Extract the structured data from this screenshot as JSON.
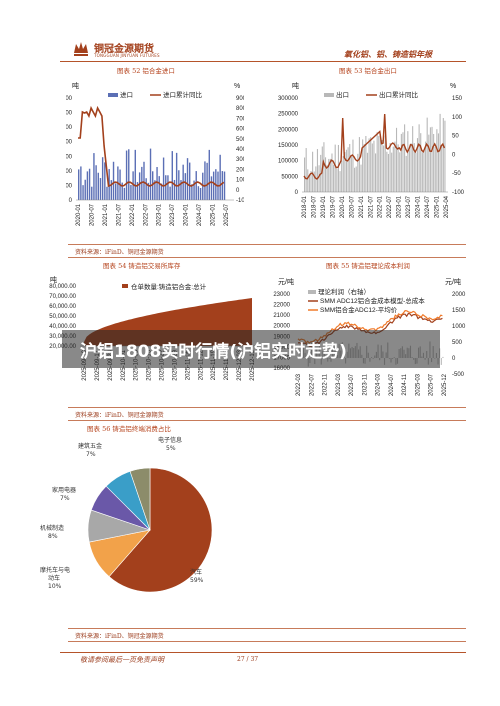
{
  "header": {
    "brand_cn": "铜冠金源期货",
    "brand_en": "TONGGUAN JINYUAN FUTURES",
    "report_title": "氧化铝、铝、铸造铝年报"
  },
  "overlay": {
    "title": "沪铝1808实时行情(沪铝实时走势)"
  },
  "charts": {
    "c52": {
      "caption": "图表 52  铝合金进口",
      "unit_left": "吨",
      "unit_right": "%",
      "legend": [
        "进口",
        "进口累计同比"
      ],
      "y_left_ticks": [
        "1400000",
        "1200000",
        "1000000",
        "800000",
        "600000",
        "400000",
        "200000",
        "0"
      ],
      "y_right_ticks": [
        "900",
        "800",
        "700",
        "600",
        "500",
        "400",
        "300",
        "200",
        "100",
        "0",
        "-100"
      ],
      "x_ticks": [
        "2020-01",
        "2020-07",
        "2021-01",
        "2021-07",
        "2022-01",
        "2022-07",
        "2023-01",
        "2023-07",
        "2024-01",
        "2024-07",
        "2025-01",
        "2025-07"
      ]
    },
    "c53": {
      "caption": "图表 53  铝合金出口",
      "unit_left": "吨",
      "unit_right": "%",
      "legend": [
        "出口",
        "出口累计同比"
      ],
      "y_left_ticks": [
        "300000",
        "250000",
        "200000",
        "150000",
        "100000",
        "50000",
        "0"
      ],
      "y_right_ticks": [
        "150",
        "100",
        "50",
        "0",
        "-50",
        "-100"
      ],
      "x_ticks": [
        "2018-01",
        "2018-07",
        "2019-01",
        "2019-07",
        "2020-01",
        "2020-07",
        "2021-01",
        "2021-07",
        "2022-01",
        "2022-07",
        "2023-01",
        "2023-07",
        "2024-01",
        "2024-07",
        "2025-01",
        "2025-04"
      ]
    },
    "c54": {
      "caption": "图表 54  铸造铝交易所库存",
      "unit_left": "吨",
      "legend": [
        "仓单数量:铸造铝合金:总计"
      ],
      "y_ticks": [
        "80,000.00",
        "70,000.00",
        "60,000.00",
        "50,000.00",
        "40,000.00",
        "30,000.00",
        "20,000.00"
      ],
      "x_ticks": [
        "2025-09-10",
        "2025-09-17",
        "2025-09-24",
        "2025-10-01",
        "2025-10-08",
        "2025-10-15",
        "2025-10-22",
        "2025-10-29",
        "2025-11-05",
        "2025-11-12",
        "2025-11-19",
        "2025-11-26",
        "2025-12-03",
        "2025-12-10"
      ]
    },
    "c55": {
      "caption": "图表 55  铸造铝理论成本利润",
      "unit_left": "元/吨",
      "unit_right": "元/吨",
      "legend": [
        "理论利润（右轴）",
        "SMM ADC12铝合金成本模型-总成本",
        "SMM铝合金ADC12-平均价"
      ],
      "y_left_ticks": [
        "23000",
        "22000",
        "21000",
        "20000",
        "19000",
        "18000",
        "17000",
        "16000"
      ],
      "y_right_ticks": [
        "2000",
        "1500",
        "1000",
        "500",
        "0",
        "-500"
      ],
      "x_ticks": [
        "2022-03",
        "2022-07",
        "2022-11",
        "2023-03",
        "2023-07",
        "2023-11",
        "2024-03",
        "2024-07",
        "2024-11",
        "2025-03",
        "2025-07",
        "2025-12"
      ]
    },
    "c56": {
      "caption": "图表 56  铸造铝终端消费占比",
      "slices": [
        {
          "label": "汽车",
          "pct": "59%",
          "value": 59,
          "color": "#a3401c"
        },
        {
          "label": "摩托车与电动车",
          "pct": "10%",
          "value": 10,
          "color": "#f2a24a"
        },
        {
          "label": "机械制造",
          "pct": "8%",
          "value": 8,
          "color": "#a8a8a8"
        },
        {
          "label": "家用电器",
          "pct": "7%",
          "value": 7,
          "color": "#6a58a8"
        },
        {
          "label": "建筑五金",
          "pct": "7%",
          "value": 7,
          "color": "#3a9ec8"
        },
        {
          "label": "电子信息",
          "pct": "5%",
          "value": 5,
          "color": "#8c8c6a"
        }
      ]
    }
  },
  "source": "资料来源：iFinD、铜冠金源期货",
  "footer": {
    "disclaimer": "敬请参阅最后一页免责声明",
    "page": "27 / 37"
  },
  "colors": {
    "accent": "#a3401c",
    "bar": "#b8b8b8",
    "blue": "#5b6fb5"
  }
}
